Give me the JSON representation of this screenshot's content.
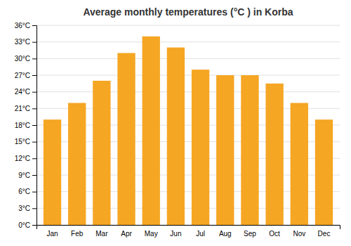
{
  "chart_data": {
    "type": "bar",
    "title": "Average monthly temperatures (°C ) in Korba",
    "categories": [
      "Jan",
      "Feb",
      "Mar",
      "Apr",
      "May",
      "Jun",
      "Jul",
      "Aug",
      "Sep",
      "Oct",
      "Nov",
      "Dec"
    ],
    "values": [
      19,
      22,
      26,
      31,
      34,
      32,
      28,
      27,
      27,
      25.5,
      22,
      19
    ],
    "color": "#F5A623",
    "ylim": [
      0,
      36
    ],
    "yticks": [
      {
        "value": 0,
        "label": "0°C"
      },
      {
        "value": 3,
        "label": "3°C"
      },
      {
        "value": 6,
        "label": "6°C"
      },
      {
        "value": 9,
        "label": "9°C"
      },
      {
        "value": 12,
        "label": "12°C"
      },
      {
        "value": 15,
        "label": "15°C"
      },
      {
        "value": 18,
        "label": "18°C"
      },
      {
        "value": 21,
        "label": "21°C"
      },
      {
        "value": 24,
        "label": "24°C"
      },
      {
        "value": 27,
        "label": "27°C"
      },
      {
        "value": 30,
        "label": "30°C"
      },
      {
        "value": 33,
        "label": "33°C"
      },
      {
        "value": 36,
        "label": "36°C"
      }
    ],
    "grid": true
  }
}
